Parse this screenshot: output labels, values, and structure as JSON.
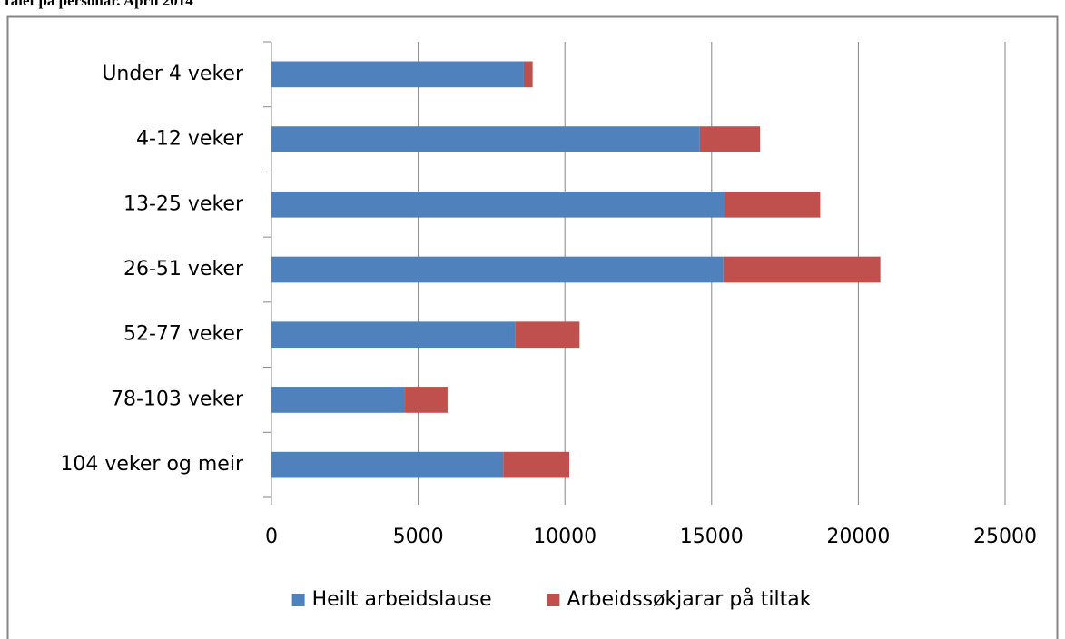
{
  "chart_data": {
    "type": "bar",
    "orientation": "horizontal",
    "stacked": true,
    "title": "Talet på personar. April 2014",
    "categories": [
      "Under 4 veker",
      "4-12 veker",
      "13-25 veker",
      "26-51 veker",
      "52-77 veker",
      "78-103 veker",
      "104 veker og meir"
    ],
    "series": [
      {
        "name": "Heilt arbeidslause",
        "color": "#4f81bd",
        "values": [
          8600,
          14600,
          15450,
          15400,
          8300,
          4550,
          7900
        ]
      },
      {
        "name": "Arbeidssøkjarar på tiltak",
        "color": "#c0504d",
        "values": [
          300,
          2050,
          3250,
          5350,
          2200,
          1450,
          2250
        ]
      }
    ],
    "xlim": [
      0,
      25000
    ],
    "xticks": [
      0,
      5000,
      10000,
      15000,
      20000,
      25000
    ],
    "grid": true,
    "legend": "bottom"
  }
}
